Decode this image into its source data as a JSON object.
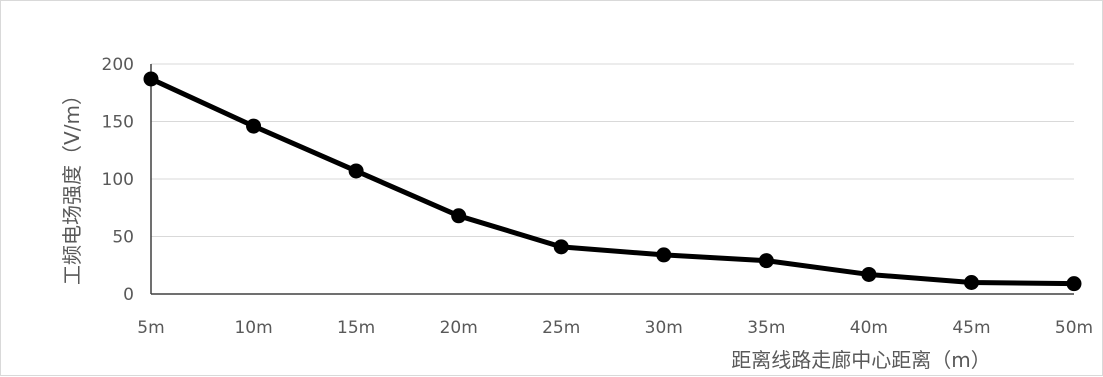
{
  "chart_data": {
    "type": "line",
    "title": "",
    "xlabel": "距离线路走廊中心距离（m）",
    "ylabel": "工频电场强度（V/m）",
    "categories": [
      "5m",
      "10m",
      "15m",
      "20m",
      "25m",
      "30m",
      "35m",
      "40m",
      "45m",
      "50m"
    ],
    "series": [
      {
        "values": [
          187,
          146,
          107,
          68,
          41,
          34,
          29,
          17,
          10,
          9
        ]
      }
    ],
    "yticks": [
      "0",
      "50",
      "100",
      "150",
      "200"
    ],
    "ylim": [
      0,
      200
    ],
    "grid": true,
    "legend": "none",
    "colors": {
      "line": "#000000",
      "grid": "#d9d9d9",
      "text": "#595959",
      "frame": "#d9d9d9"
    }
  }
}
